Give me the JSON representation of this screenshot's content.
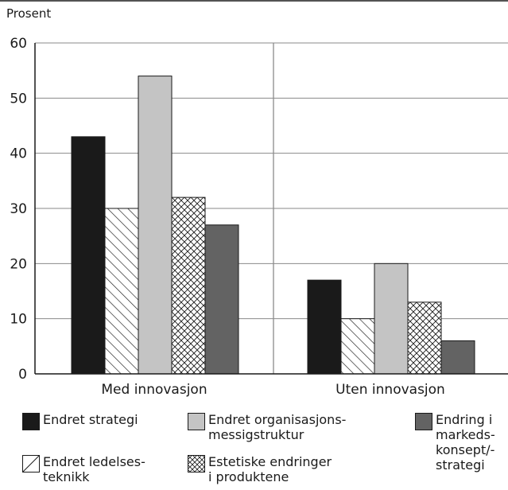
{
  "chart_data": {
    "type": "bar",
    "title": "",
    "ylabel": "Prosent",
    "xlabel": "",
    "ylim": [
      0,
      60
    ],
    "yticks": [
      0,
      10,
      20,
      30,
      40,
      50,
      60
    ],
    "grid": true,
    "legend_position": "bottom",
    "categories": [
      "Med innovasjon",
      "Uten innovasjon"
    ],
    "series": [
      {
        "name": "Endret strategi",
        "values": [
          43,
          17
        ],
        "fill": "solid",
        "color": "#1a1a1a"
      },
      {
        "name": "Endret ledelses-\nteknikk",
        "values": [
          30,
          10
        ],
        "fill": "hatch",
        "color": "#ffffff"
      },
      {
        "name": "Endret organisasjons-\nmessigstruktur",
        "values": [
          54,
          20
        ],
        "fill": "solid",
        "color": "#c4c4c4"
      },
      {
        "name": "Estetiske endringer\ni produktene",
        "values": [
          32,
          13
        ],
        "fill": "crosshatch",
        "color": "#ffffff"
      },
      {
        "name": "Endring i\nmarkeds-\nkonsept/-\nstrategi",
        "values": [
          27,
          6
        ],
        "fill": "solid",
        "color": "#636363"
      }
    ]
  }
}
